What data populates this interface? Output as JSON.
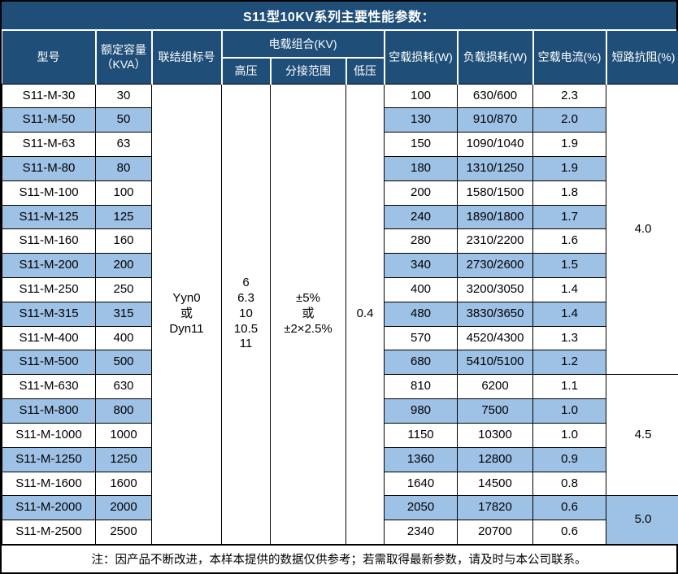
{
  "title": "S11型10KV系列主要性能参数：",
  "colors": {
    "header_bg": "#1F4E79",
    "alt_row_bg": "#9EC1E6",
    "border": "#000000",
    "header_divider": "#FFFFFF"
  },
  "table": {
    "headers": {
      "model": "型号",
      "capacity": "额定容量\n（KVA）",
      "vector_group": "联结组标号",
      "voltage_combo": "电载组合(KV)",
      "hv": "高压",
      "tap_range": "分接范围",
      "lv": "低压",
      "no_load_loss": "空载损耗(W)",
      "load_loss": "负载损耗(W)",
      "no_load_current": "空载电流(%)",
      "short_circuit_impedance": "短路抗阻(%)"
    },
    "merged": {
      "vector_group": "Yyn0\n或\nDyn11",
      "hv_voltages": "6\n6.3\n10\n10.5\n11",
      "tap_range": "±5%\n或\n±2×2.5%",
      "lv_voltage": "0.4",
      "impedance_groups": [
        {
          "value": "4.0",
          "rowspan": 12
        },
        {
          "value": "4.5",
          "rowspan": 5
        },
        {
          "value": "5.0",
          "rowspan": 2
        }
      ]
    },
    "rows": [
      {
        "model": "S11-M-30",
        "capacity": "30",
        "no_load_loss": "100",
        "load_loss": "630/600",
        "no_load_current": "2.3"
      },
      {
        "model": "S11-M-50",
        "capacity": "50",
        "no_load_loss": "130",
        "load_loss": "910/870",
        "no_load_current": "2.0"
      },
      {
        "model": "S11-M-63",
        "capacity": "63",
        "no_load_loss": "150",
        "load_loss": "1090/1040",
        "no_load_current": "1.9"
      },
      {
        "model": "S11-M-80",
        "capacity": "80",
        "no_load_loss": "180",
        "load_loss": "1310/1250",
        "no_load_current": "1.9"
      },
      {
        "model": "S11-M-100",
        "capacity": "100",
        "no_load_loss": "200",
        "load_loss": "1580/1500",
        "no_load_current": "1.8"
      },
      {
        "model": "S11-M-125",
        "capacity": "125",
        "no_load_loss": "240",
        "load_loss": "1890/1800",
        "no_load_current": "1.7"
      },
      {
        "model": "S11-M-160",
        "capacity": "160",
        "no_load_loss": "280",
        "load_loss": "2310/2200",
        "no_load_current": "1.6"
      },
      {
        "model": "S11-M-200",
        "capacity": "200",
        "no_load_loss": "340",
        "load_loss": "2730/2600",
        "no_load_current": "1.5"
      },
      {
        "model": "S11-M-250",
        "capacity": "250",
        "no_load_loss": "400",
        "load_loss": "3200/3050",
        "no_load_current": "1.4"
      },
      {
        "model": "S11-M-315",
        "capacity": "315",
        "no_load_loss": "480",
        "load_loss": "3830/3650",
        "no_load_current": "1.4"
      },
      {
        "model": "S11-M-400",
        "capacity": "400",
        "no_load_loss": "570",
        "load_loss": "4520/4300",
        "no_load_current": "1.3"
      },
      {
        "model": "S11-M-500",
        "capacity": "500",
        "no_load_loss": "680",
        "load_loss": "5410/5100",
        "no_load_current": "1.2"
      },
      {
        "model": "S11-M-630",
        "capacity": "630",
        "no_load_loss": "810",
        "load_loss": "6200",
        "no_load_current": "1.1"
      },
      {
        "model": "S11-M-800",
        "capacity": "800",
        "no_load_loss": "980",
        "load_loss": "7500",
        "no_load_current": "1.0"
      },
      {
        "model": "S11-M-1000",
        "capacity": "1000",
        "no_load_loss": "1150",
        "load_loss": "10300",
        "no_load_current": "1.0"
      },
      {
        "model": "S11-M-1250",
        "capacity": "1250",
        "no_load_loss": "1360",
        "load_loss": "12800",
        "no_load_current": "0.9"
      },
      {
        "model": "S11-M-1600",
        "capacity": "1600",
        "no_load_loss": "1640",
        "load_loss": "14500",
        "no_load_current": "0.8"
      },
      {
        "model": "S11-M-2000",
        "capacity": "2000",
        "no_load_loss": "2050",
        "load_loss": "17820",
        "no_load_current": "0.6"
      },
      {
        "model": "S11-M-2500",
        "capacity": "2500",
        "no_load_loss": "2340",
        "load_loss": "20700",
        "no_load_current": "0.6"
      }
    ]
  },
  "note": "注：因产品不断改进，本样本提供的数据仅供参考；若需取得最新参数，请及时与本公司联系。"
}
